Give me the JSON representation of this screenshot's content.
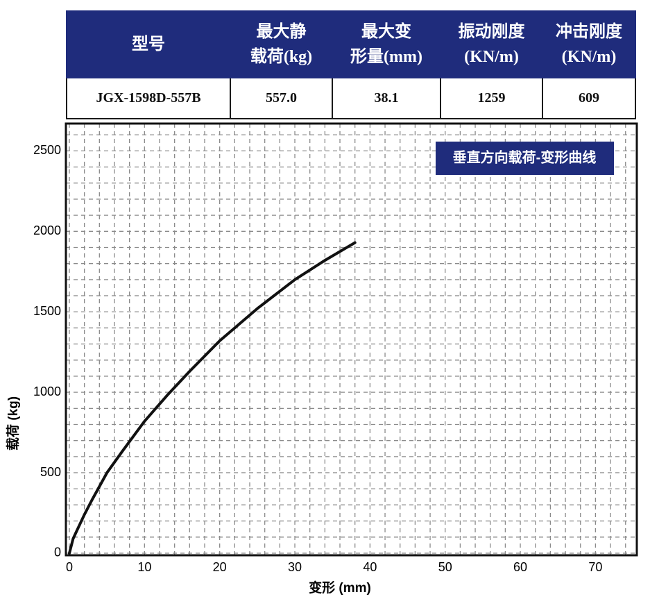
{
  "table": {
    "header": [
      "型号",
      "最大静\n载荷(kg)",
      "最大变\n形量(mm)",
      "振动刚度\n(KN/m)",
      "冲击刚度\n(KN/m)"
    ],
    "rows": [
      [
        "JGX-1598D-557B",
        "557.0",
        "38.1",
        "1259",
        "609"
      ]
    ]
  },
  "chart_data": {
    "type": "line",
    "title": "垂直方向载荷-变形曲线",
    "x_label": "变形 (mm)",
    "y_label": "载荷 (kg)",
    "x": [
      0,
      0.5,
      1,
      2,
      3,
      5,
      7,
      10,
      13,
      16,
      20,
      25,
      30,
      34,
      38
    ],
    "values": [
      0,
      90,
      140,
      240,
      330,
      500,
      630,
      820,
      980,
      1130,
      1320,
      1520,
      1700,
      1820,
      1930
    ],
    "color": "#111111",
    "xlim": [
      -0.46,
      75.5
    ],
    "ylim": [
      -13,
      2670
    ],
    "xticks": [
      0,
      10,
      20,
      30,
      40,
      50,
      60,
      70
    ],
    "yticks": [
      0,
      500,
      1000,
      1500,
      2000,
      2500
    ],
    "grid": true
  }
}
